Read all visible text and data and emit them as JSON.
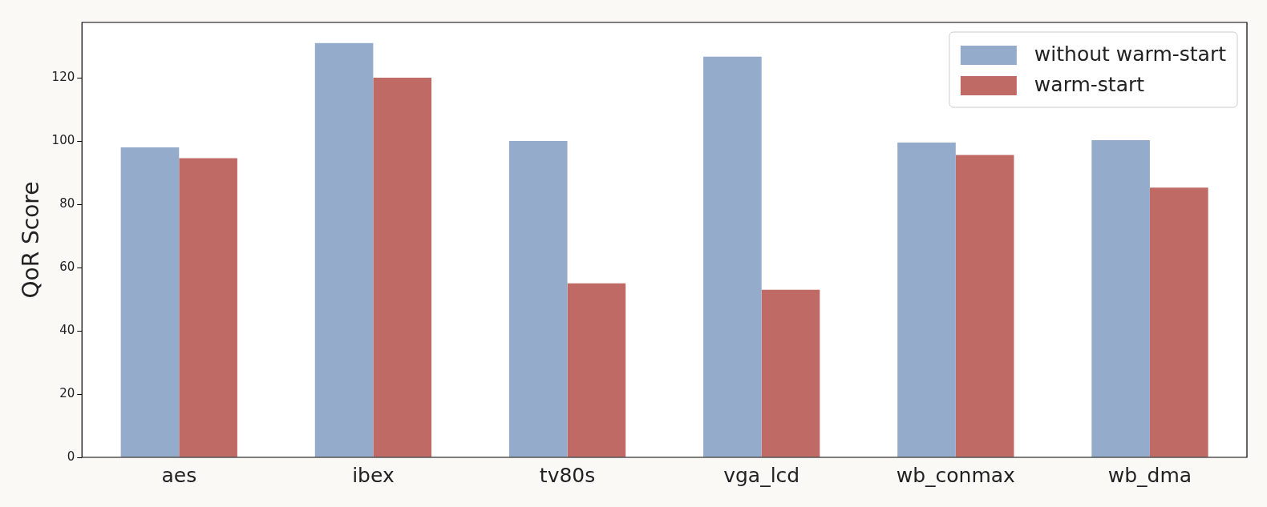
{
  "chart_data": {
    "type": "bar",
    "ylabel": "QoR Score",
    "categories": [
      "aes",
      "ibex",
      "tv80s",
      "vga_lcd",
      "wb_conmax",
      "wb_dma"
    ],
    "series": [
      {
        "name": "without warm-start",
        "color": "#94abcb",
        "values": [
          98,
          131,
          100,
          126.7,
          99.5,
          100.3
        ]
      },
      {
        "name": "warm-start",
        "color": "#c06a65",
        "values": [
          94.6,
          120,
          55,
          53,
          95.6,
          85.3
        ]
      }
    ],
    "ylim": [
      0,
      137.5
    ],
    "yticks": [
      0,
      20,
      40,
      60,
      80,
      100,
      120
    ],
    "grid": false,
    "legend": "top right"
  }
}
